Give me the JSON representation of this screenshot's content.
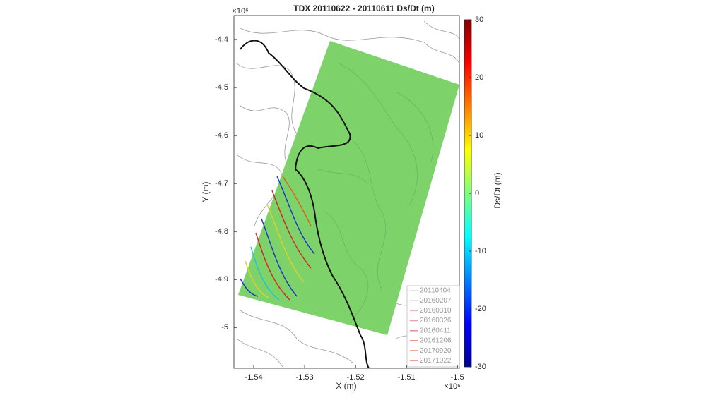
{
  "chart_data": {
    "type": "map",
    "title": "TDX  20110622 - 20110611 Ds/Dt (m)",
    "x_label": "X (m)",
    "y_label": "Y (m)",
    "x_multiplier": "×10⁶",
    "y_multiplier": "×10⁶",
    "xlim": [
      -1.5439,
      -1.4996
    ],
    "xticks": [
      -1.54,
      -1.53,
      -1.52,
      -1.51,
      -1.5
    ],
    "ylim": [
      -5.085,
      -4.35
    ],
    "yticks": [
      -4.4,
      -4.5,
      -4.6,
      -4.7,
      -4.8,
      -4.9,
      -5
    ],
    "colorbar": {
      "label": "Ds/Dt (m)",
      "lim": [
        -30,
        30
      ],
      "ticks": [
        30,
        20,
        10,
        0,
        -10,
        -20,
        -30
      ],
      "colormap": "jet"
    },
    "series": [
      {
        "name": "20110404",
        "color": "#d9d9d9"
      },
      {
        "name": "20160207",
        "color": "#d6cccc"
      },
      {
        "name": "20160310",
        "color": "#dcbcbc"
      },
      {
        "name": "20160326",
        "color": "#e4a8a8"
      },
      {
        "name": "20160411",
        "color": "#e89090"
      },
      {
        "name": "20161206",
        "color": "#e27070"
      },
      {
        "name": "20170920",
        "color": "#e06060"
      },
      {
        "name": "20171022",
        "color": "#f0a0a0"
      }
    ]
  }
}
